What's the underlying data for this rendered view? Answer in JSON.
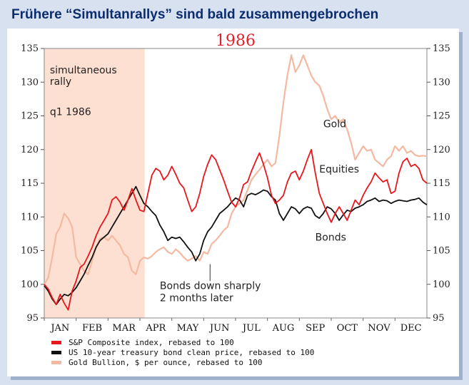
{
  "headline": "Frühere “Simultanrallys” sind bald zusammengebrochen",
  "chart_data": {
    "type": "line",
    "title": "1986",
    "ylim": [
      95,
      135
    ],
    "y_ticks": [
      "135",
      "130",
      "125",
      "120",
      "115",
      "110",
      "105",
      "100",
      "95"
    ],
    "months": [
      "JAN",
      "FEB",
      "MAR",
      "APR",
      "MAY",
      "JUN",
      "JUL",
      "AUG",
      "SEP",
      "OCT",
      "NOV",
      "DEC"
    ],
    "x_range": [
      0,
      48
    ],
    "shaded_region": {
      "x_start": 0,
      "x_end": 12.6
    },
    "series": [
      {
        "name": "S&P Composite index, rebased to 100",
        "color": "#e8161d",
        "x": [
          0,
          0.5,
          1,
          1.5,
          2,
          2.5,
          3,
          3.5,
          4,
          4.5,
          5,
          5.5,
          6,
          6.5,
          7,
          7.5,
          8,
          8.5,
          9,
          9.5,
          10,
          10.5,
          11,
          11.5,
          12,
          12.5,
          13,
          13.5,
          14,
          14.5,
          15,
          15.5,
          16,
          16.5,
          17,
          17.5,
          18,
          18.5,
          19,
          19.5,
          20,
          20.5,
          21,
          21.5,
          22,
          22.5,
          23,
          23.5,
          24,
          24.5,
          25,
          25.5,
          26,
          26.5,
          27,
          27.5,
          28,
          28.5,
          29,
          29.5,
          30,
          30.5,
          31,
          31.5,
          32,
          32.5,
          33,
          33.5,
          34,
          34.5,
          35,
          35.5,
          36,
          36.5,
          37,
          37.5,
          38,
          38.5,
          39,
          39.5,
          40,
          40.5,
          41,
          41.5,
          42,
          42.5,
          43,
          43.5,
          44,
          44.5,
          45,
          45.5,
          46,
          46.5,
          47,
          47.5,
          48
        ],
        "values": [
          100,
          99.3,
          98,
          97,
          98.5,
          97.2,
          96.2,
          99,
          100.5,
          102.5,
          103,
          104.2,
          105.5,
          107.2,
          108.5,
          109.5,
          110.5,
          112.5,
          113,
          112.2,
          111,
          112.5,
          114.2,
          112.5,
          111,
          110.8,
          113.5,
          116.2,
          117.2,
          116.8,
          115.5,
          116.2,
          117.5,
          116.3,
          115,
          114.3,
          112.5,
          110.8,
          111.5,
          113.5,
          116,
          117.8,
          119.2,
          118.5,
          117,
          115.5,
          113.8,
          112.2,
          111.5,
          112.8,
          114.8,
          115.2,
          116.8,
          118.2,
          119.5,
          117.8,
          115.8,
          113.2,
          112,
          112.5,
          113.2,
          115.2,
          116.5,
          116.8,
          115.5,
          116.8,
          118.5,
          120,
          116.5,
          113.5,
          112,
          110.5,
          109.2,
          110.5,
          111.5,
          110.5,
          109.5,
          111,
          112.5,
          111.8,
          113.2,
          114.3,
          115.2,
          116.5,
          115.8,
          115.2,
          115.5,
          113.5,
          113.8,
          116.5,
          118.2,
          118.7,
          117.5,
          117.8,
          117.2,
          115.5,
          115
        ]
      },
      {
        "name": "US 10-year treasury bond clean price, rebased to 100",
        "color": "#111111",
        "x": [
          0,
          0.5,
          1,
          1.5,
          2,
          2.5,
          3,
          3.5,
          4,
          4.5,
          5,
          5.5,
          6,
          6.5,
          7,
          7.5,
          8,
          8.5,
          9,
          9.5,
          10,
          10.5,
          11,
          11.5,
          12,
          12.5,
          13,
          13.5,
          14,
          14.5,
          15,
          15.5,
          16,
          16.5,
          17,
          17.5,
          18,
          18.5,
          19,
          19.5,
          20,
          20.5,
          21,
          21.5,
          22,
          22.5,
          23,
          23.5,
          24,
          24.5,
          25,
          25.5,
          26,
          26.5,
          27,
          27.5,
          28,
          28.5,
          29,
          29.5,
          30,
          30.5,
          31,
          31.5,
          32,
          32.5,
          33,
          33.5,
          34,
          34.5,
          35,
          35.5,
          36,
          36.5,
          37,
          37.5,
          38,
          38.5,
          39,
          39.5,
          40,
          40.5,
          41,
          41.5,
          42,
          42.5,
          43,
          43.5,
          44,
          44.5,
          45,
          45.5,
          46,
          46.5,
          47,
          47.5,
          48
        ],
        "values": [
          99.8,
          99,
          97.8,
          97,
          97.8,
          98.5,
          98.3,
          98.8,
          99.5,
          100.5,
          101.5,
          102.8,
          104,
          105.5,
          106.5,
          107,
          107.5,
          108.5,
          109.5,
          110.5,
          111.5,
          112.5,
          113.5,
          114.5,
          113.2,
          112,
          111.5,
          110.8,
          110.2,
          108.8,
          107.8,
          106.5,
          107,
          106.8,
          107,
          106.3,
          105.5,
          104.8,
          103.5,
          104.5,
          106.5,
          107.8,
          108.5,
          109.5,
          110.5,
          111,
          111.5,
          112.2,
          112.8,
          112.5,
          111.5,
          113.2,
          113.5,
          113.3,
          113.6,
          114,
          113.8,
          113,
          112.5,
          110.5,
          109.5,
          110.5,
          111.5,
          111.2,
          110.5,
          111.2,
          111.5,
          111.3,
          110.2,
          109.8,
          110.5,
          111.5,
          111.2,
          110.5,
          109.5,
          110.3,
          111,
          110.8,
          111.3,
          111.5,
          111.8,
          112.3,
          112.5,
          112.8,
          112.3,
          112.5,
          112.4,
          112,
          112.3,
          112.5,
          112.4,
          112.3,
          112.5,
          112.6,
          112.8,
          112.2,
          111.8
        ]
      },
      {
        "name": "Gold Bullion, $ per ounce, rebased to 100",
        "color": "#f4b9a0",
        "x": [
          0,
          0.5,
          1,
          1.5,
          2,
          2.5,
          3,
          3.5,
          4,
          4.5,
          5,
          5.5,
          6,
          6.5,
          7,
          7.5,
          8,
          8.5,
          9,
          9.5,
          10,
          10.5,
          11,
          11.5,
          12,
          12.5,
          13,
          13.5,
          14,
          14.5,
          15,
          15.5,
          16,
          16.5,
          17,
          17.5,
          18,
          18.5,
          19,
          19.5,
          20,
          20.5,
          21,
          21.5,
          22,
          22.5,
          23,
          23.5,
          24,
          24.5,
          25,
          25.5,
          26,
          26.5,
          27,
          27.5,
          28,
          28.5,
          29,
          29.5,
          30,
          30.5,
          31,
          31.5,
          32,
          32.5,
          33,
          33.5,
          34,
          34.5,
          35,
          35.5,
          36,
          36.5,
          37,
          37.5,
          38,
          38.5,
          39,
          39.5,
          40,
          40.5,
          41,
          41.5,
          42,
          42.5,
          43,
          43.5,
          44,
          44.5,
          45,
          45.5,
          46,
          46.5,
          47,
          47.5,
          48
        ],
        "values": [
          100,
          101,
          104,
          107.5,
          108.5,
          110.5,
          109.8,
          108.5,
          104,
          103,
          102,
          101.5,
          103.5,
          105.5,
          106.8,
          107,
          106.5,
          107.2,
          106.5,
          105.8,
          104.5,
          104,
          102,
          101.5,
          103.5,
          104,
          103.8,
          104.2,
          104.8,
          105.2,
          105.5,
          104.8,
          104.5,
          105.2,
          104.7,
          104,
          103.5,
          103.8,
          104.2,
          103.5,
          104.8,
          104.5,
          106,
          106.5,
          107.2,
          108,
          108.5,
          110.5,
          111.5,
          112,
          112.5,
          114,
          115.5,
          116.3,
          117,
          117.8,
          118.5,
          117.5,
          118,
          122,
          127,
          131,
          134,
          131.5,
          132.5,
          134,
          132.5,
          131,
          130,
          129.5,
          128,
          126,
          124.5,
          125,
          124,
          124.5,
          123,
          121,
          118.5,
          119.5,
          120.5,
          119.8,
          120,
          118.5,
          118,
          117.5,
          118.5,
          119,
          120.5,
          119.8,
          120.5,
          119.5,
          119.8,
          119.2,
          119,
          119.1,
          119
        ]
      }
    ],
    "annotations": [
      {
        "text": "simultaneous",
        "x": 0.7,
        "y": 131.3
      },
      {
        "text": "rally",
        "x": 0.7,
        "y": 129.6
      },
      {
        "text": "q1 1986",
        "x": 0.7,
        "y": 125.1
      },
      {
        "text": "Gold",
        "x": 35,
        "y": 123.3
      },
      {
        "text": "Equities",
        "x": 34.5,
        "y": 116.6
      },
      {
        "text": "Bonds",
        "x": 34,
        "y": 106.5
      },
      {
        "text": "Bonds down sharply",
        "x": 14.5,
        "y": 99.3
      },
      {
        "text": "2 months later",
        "x": 14.5,
        "y": 97.5
      }
    ],
    "pointer": {
      "x": 20.8,
      "y_from": 100.5,
      "y_to": 103
    }
  }
}
